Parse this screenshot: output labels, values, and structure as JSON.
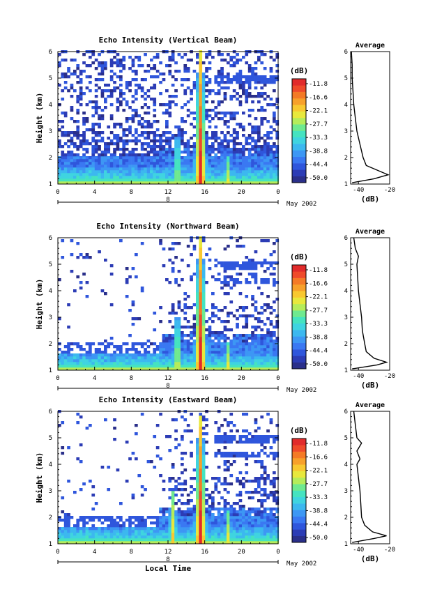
{
  "colorbar": {
    "unit_label": "(dB)",
    "ticks": [
      "-11.8",
      "-16.6",
      "-22.1",
      "-27.7",
      "-33.3",
      "-38.8",
      "-44.4",
      "-50.0"
    ],
    "colors": [
      "#2a2f8a",
      "#2c3cb5",
      "#2f56dc",
      "#3a78f2",
      "#3d97f4",
      "#3cb8ef",
      "#3fd4e0",
      "#45e3c0",
      "#6fe98f",
      "#b5ec5a",
      "#e8e83c",
      "#f8c830",
      "#f7a02a",
      "#f47a26",
      "#ef4a2a",
      "#e12b2b"
    ]
  },
  "date_label": "May 2002",
  "xaxis_title": "Local Time",
  "chart_data": [
    {
      "type": "heatmap",
      "title": "Echo Intensity (Vertical Beam)",
      "ylabel": "Height (km)",
      "x_ticks": [
        "0",
        "4",
        "8",
        "12",
        "16",
        "20",
        "0"
      ],
      "y_ticks": [
        "1",
        "2",
        "3",
        "4",
        "5",
        "6"
      ],
      "day_mark": "8",
      "xlim": [
        0,
        24
      ],
      "ylim": [
        1,
        6
      ],
      "convective_cells": [
        {
          "time": 13,
          "top_km": 2.8,
          "strength": 0.55
        },
        {
          "time": 15.5,
          "top_km": 6.0,
          "strength": 1.0
        },
        {
          "time": 18.5,
          "top_km": 2.0,
          "strength": 0.5
        }
      ],
      "average": {
        "title": "Average",
        "xlabel": "(dB)",
        "x_ticks": [
          "-40",
          "-20"
        ],
        "y_ticks": [
          "1",
          "2",
          "3",
          "4",
          "5",
          "6"
        ],
        "xlim": [
          -45,
          -20
        ],
        "profile": [
          [
            1.05,
            -44
          ],
          [
            1.2,
            -30
          ],
          [
            1.35,
            -21
          ],
          [
            1.5,
            -27
          ],
          [
            1.7,
            -35
          ],
          [
            2.0,
            -37
          ],
          [
            2.5,
            -39
          ],
          [
            3.0,
            -41
          ],
          [
            3.5,
            -42
          ],
          [
            4.0,
            -43
          ],
          [
            4.5,
            -43.5
          ],
          [
            5.0,
            -44
          ],
          [
            5.5,
            -44
          ],
          [
            6.0,
            -44.5
          ]
        ]
      }
    },
    {
      "type": "heatmap",
      "title": "Echo Intensity (Northward Beam)",
      "ylabel": "Height (km)",
      "x_ticks": [
        "0",
        "4",
        "8",
        "12",
        "16",
        "20",
        "0"
      ],
      "y_ticks": [
        "1",
        "2",
        "3",
        "4",
        "5",
        "6"
      ],
      "day_mark": "8",
      "xlim": [
        0,
        24
      ],
      "ylim": [
        1,
        6
      ],
      "convective_cells": [
        {
          "time": 13,
          "top_km": 3.0,
          "strength": 0.6
        },
        {
          "time": 15.5,
          "top_km": 6.0,
          "strength": 1.0
        },
        {
          "time": 18.5,
          "top_km": 2.0,
          "strength": 0.55
        }
      ],
      "average": {
        "title": "Average",
        "xlabel": "(dB)",
        "x_ticks": [
          "-40",
          "-20"
        ],
        "y_ticks": [
          "1",
          "2",
          "3",
          "4",
          "5",
          "6"
        ],
        "xlim": [
          -45,
          -20
        ],
        "profile": [
          [
            1.05,
            -44
          ],
          [
            1.2,
            -28
          ],
          [
            1.3,
            -22
          ],
          [
            1.45,
            -30
          ],
          [
            1.7,
            -35
          ],
          [
            2.0,
            -36
          ],
          [
            2.5,
            -37.5
          ],
          [
            3.0,
            -38
          ],
          [
            3.5,
            -39
          ],
          [
            4.0,
            -40
          ],
          [
            4.5,
            -40.5
          ],
          [
            5.0,
            -41
          ],
          [
            5.3,
            -40
          ],
          [
            5.6,
            -42
          ],
          [
            6.0,
            -43
          ]
        ]
      }
    },
    {
      "type": "heatmap",
      "title": "Echo Intensity (Eastward Beam)",
      "ylabel": "Height (km)",
      "x_ticks": [
        "0",
        "4",
        "8",
        "12",
        "16",
        "20",
        "0"
      ],
      "y_ticks": [
        "1",
        "2",
        "3",
        "4",
        "5",
        "6"
      ],
      "day_mark": "8",
      "xlim": [
        0,
        24
      ],
      "ylim": [
        1,
        6
      ],
      "convective_cells": [
        {
          "time": 12.5,
          "top_km": 3.0,
          "strength": 0.6
        },
        {
          "time": 15.5,
          "top_km": 5.8,
          "strength": 1.0
        },
        {
          "time": 18.5,
          "top_km": 2.2,
          "strength": 0.55
        }
      ],
      "average": {
        "title": "Average",
        "xlabel": "(dB)",
        "x_ticks": [
          "-40",
          "-20"
        ],
        "y_ticks": [
          "1",
          "2",
          "3",
          "4",
          "5",
          "6"
        ],
        "xlim": [
          -45,
          -20
        ],
        "profile": [
          [
            1.05,
            -44
          ],
          [
            1.2,
            -30
          ],
          [
            1.3,
            -22
          ],
          [
            1.45,
            -31
          ],
          [
            1.7,
            -36
          ],
          [
            2.0,
            -38
          ],
          [
            2.5,
            -38.5
          ],
          [
            3.0,
            -39
          ],
          [
            3.5,
            -40
          ],
          [
            4.0,
            -41
          ],
          [
            4.2,
            -39
          ],
          [
            4.5,
            -41
          ],
          [
            4.8,
            -38
          ],
          [
            5.0,
            -41
          ],
          [
            5.5,
            -42
          ],
          [
            6.0,
            -43
          ]
        ]
      }
    }
  ]
}
